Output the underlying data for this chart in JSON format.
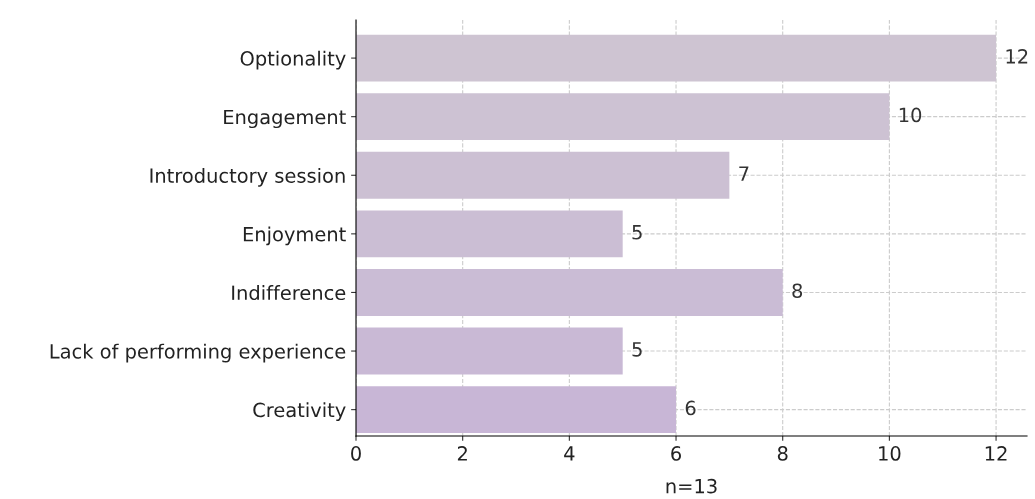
{
  "chart_data": {
    "type": "bar",
    "orientation": "horizontal",
    "xlabel": "n=13",
    "categories": [
      "Optionality",
      "Engagement",
      "Introductory session",
      "Enjoyment",
      "Indifference",
      "Lack of performing experience",
      "Creativity"
    ],
    "values": [
      12,
      10,
      7,
      5,
      8,
      5,
      6
    ],
    "colors": [
      "#cec4d2",
      "#cdc2d3",
      "#ccc0d3",
      "#cbbed4",
      "#cabcd5",
      "#c9b9d5",
      "#c8b6d6"
    ],
    "xlim": [
      0,
      12.58
    ],
    "xticks": [
      0,
      2,
      4,
      6,
      8,
      10,
      12
    ],
    "grid": true,
    "data_labels": true
  }
}
